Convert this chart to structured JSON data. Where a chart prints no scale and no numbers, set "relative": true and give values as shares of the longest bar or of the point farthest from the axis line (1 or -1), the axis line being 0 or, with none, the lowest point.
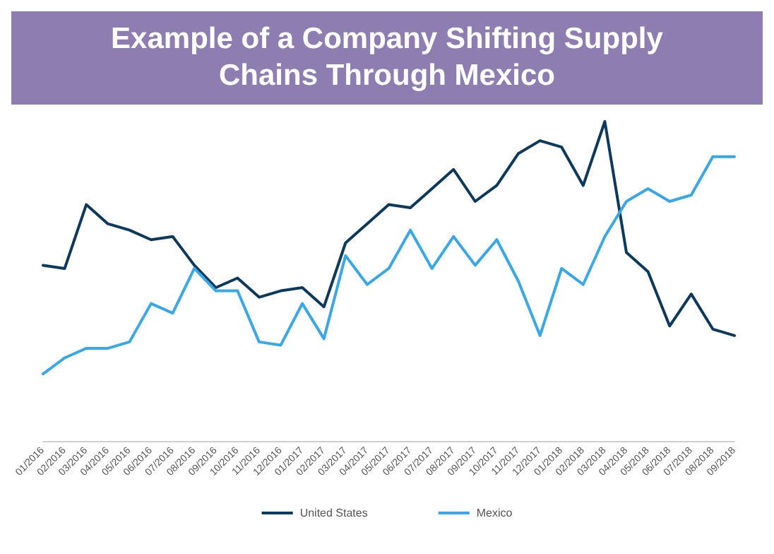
{
  "chart_data": {
    "type": "line",
    "title": "Example of a Company Shifting Supply Chains Through Mexico",
    "relative": true,
    "legend": "bottom",
    "grid": false,
    "marker": "none",
    "line_style": "solid",
    "categories": [
      "01/2016",
      "02/2016",
      "03/2016",
      "04/2016",
      "05/2016",
      "06/2016",
      "07/2016",
      "08/2016",
      "09/2016",
      "10/2016",
      "11/2016",
      "12/2016",
      "01/2017",
      "02/2017",
      "03/2017",
      "04/2017",
      "05/2017",
      "06/2017",
      "07/2017",
      "08/2017",
      "09/2017",
      "10/2017",
      "11/2017",
      "12/2017",
      "01/2018",
      "02/2018",
      "03/2018",
      "04/2018",
      "05/2018",
      "06/2018",
      "07/2018",
      "08/2018",
      "09/2018"
    ],
    "series": [
      {
        "name": "United States",
        "color": "#0d3a5c",
        "values": [
          0.55,
          0.54,
          0.74,
          0.68,
          0.66,
          0.63,
          0.64,
          0.55,
          0.48,
          0.51,
          0.45,
          0.47,
          0.48,
          0.42,
          0.62,
          0.68,
          0.74,
          0.73,
          0.79,
          0.85,
          0.75,
          0.8,
          0.9,
          0.94,
          0.92,
          0.8,
          1,
          0.59,
          0.53,
          0.36,
          0.46,
          0.35,
          0.33
        ]
      },
      {
        "name": "Mexico",
        "color": "#3aa8e8",
        "values": [
          0.21,
          0.26,
          0.29,
          0.29,
          0.31,
          0.43,
          0.4,
          0.54,
          0.47,
          0.47,
          0.31,
          0.3,
          0.43,
          0.32,
          0.58,
          0.49,
          0.54,
          0.66,
          0.54,
          0.64,
          0.55,
          0.63,
          0.5,
          0.33,
          0.54,
          0.49,
          0.64,
          0.75,
          0.79,
          0.75,
          0.77,
          0.89,
          0.89
        ]
      }
    ]
  }
}
